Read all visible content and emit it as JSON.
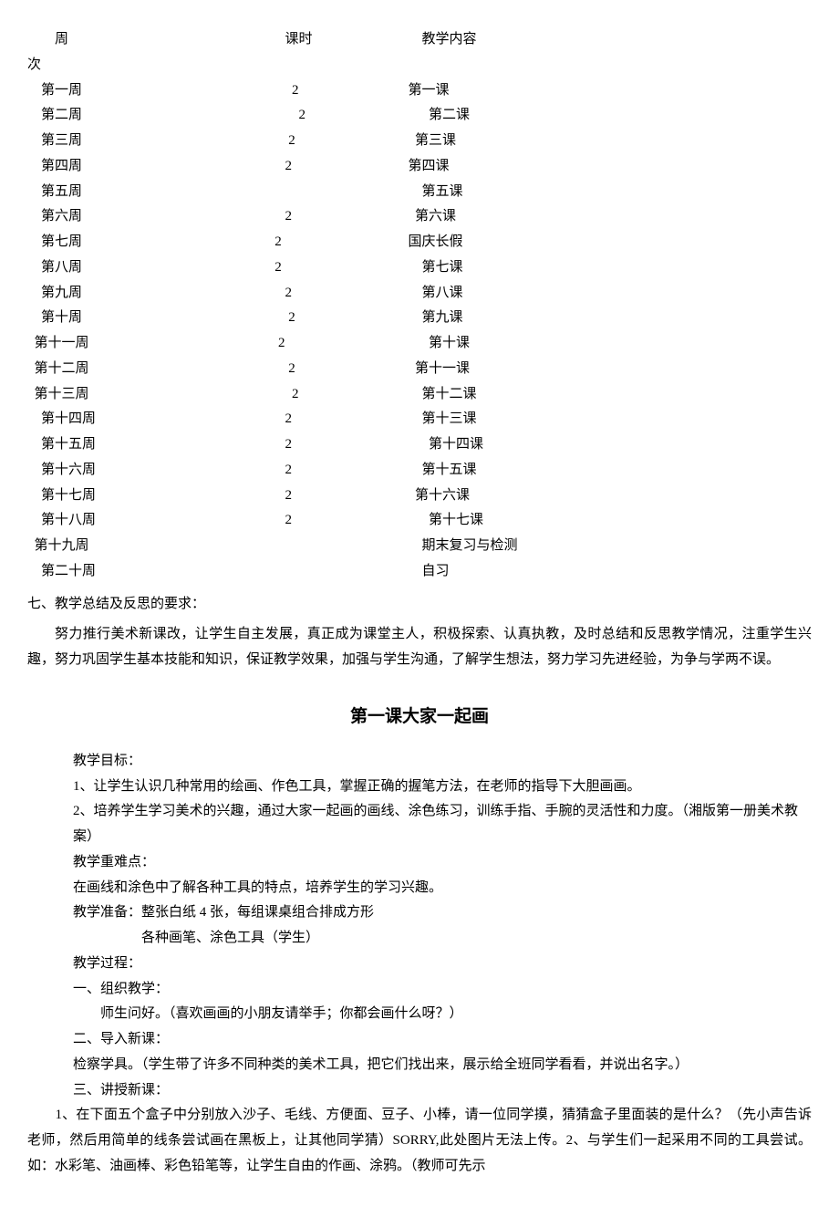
{
  "schedule": {
    "header": {
      "week": "        周",
      "hours": "              课时",
      "content": "              教学内容"
    },
    "header2": {
      "week": "次",
      "hours": "",
      "content": ""
    },
    "rows": [
      {
        "week": "    第一周",
        "hours": "                2",
        "content": "          第一课"
      },
      {
        "week": "    第二周",
        "hours": "                  2",
        "content": "                第二课"
      },
      {
        "week": "    第三周",
        "hours": "               2",
        "content": "            第三课"
      },
      {
        "week": "    第四周",
        "hours": "              2",
        "content": "          第四课"
      },
      {
        "week": "    第五周",
        "hours": "",
        "content": "              第五课"
      },
      {
        "week": "    第六周",
        "hours": "              2",
        "content": "            第六课"
      },
      {
        "week": "    第七周",
        "hours": "           2",
        "content": "          国庆长假"
      },
      {
        "week": "    第八周",
        "hours": "           2",
        "content": "              第七课"
      },
      {
        "week": "    第九周",
        "hours": "              2",
        "content": "              第八课"
      },
      {
        "week": "    第十周",
        "hours": "               2",
        "content": "              第九课"
      },
      {
        "week": "  第十一周",
        "hours": "            2",
        "content": "                第十课"
      },
      {
        "week": "  第十二周",
        "hours": "               2",
        "content": "            第十一课"
      },
      {
        "week": "  第十三周",
        "hours": "                2",
        "content": "              第十二课"
      },
      {
        "week": "    第十四周",
        "hours": "              2",
        "content": "              第十三课"
      },
      {
        "week": "    第十五周",
        "hours": "              2",
        "content": "                第十四课"
      },
      {
        "week": "    第十六周",
        "hours": "              2",
        "content": "              第十五课"
      },
      {
        "week": "    第十七周",
        "hours": "              2",
        "content": "            第十六课"
      },
      {
        "week": "    第十八周",
        "hours": "              2",
        "content": "                第十七课"
      },
      {
        "week": "  第十九周",
        "hours": "",
        "content": "              期末复习与检测"
      },
      {
        "week": "    第二十周",
        "hours": "",
        "content": "              自习"
      }
    ]
  },
  "section7": {
    "heading": "七、教学总结及反思的要求：",
    "body": "努力推行美术新课改，让学生自主发展，真正成为课堂主人，积极探索、认真执教，及时总结和反思教学情况，注重学生兴趣，努力巩固学生基本技能和知识，保证教学效果，加强与学生沟通，了解学生想法，努力学习先进经验，为争与学两不误。"
  },
  "lesson": {
    "title": "第一课大家一起画",
    "goals_heading": "教学目标：",
    "goal1": "1、让学生认识几种常用的绘画、作色工具，掌握正确的握笔方法，在老师的指导下大胆画画。",
    "goal2": "2、培养学生学习美术的兴趣，通过大家一起画的画线、涂色练习，训练手指、手腕的灵活性和力度。（湘版第一册美术教案）",
    "difficulty_heading": "教学重难点：",
    "difficulty_body": "在画线和涂色中了解各种工具的特点，培养学生的学习兴趣。",
    "prep_heading": "教学准备：整张白纸 4 张，每组课桌组合排成方形",
    "prep_body": "各种画笔、涂色工具（学生）",
    "process_heading": "教学过程：",
    "sec1_heading": "一、组织教学：",
    "sec1_body": "　　师生问好。（喜欢画画的小朋友请举手；你都会画什么呀？）",
    "sec2_heading": "二、导入新课：",
    "sec2_body": "检察学具。（学生带了许多不同种类的美术工具，把它们找出来，展示给全班同学看看，并说出名字。）",
    "sec3_heading": "三、讲授新课：",
    "sec3_body": "　　1、在下面五个盒子中分别放入沙子、毛线、方便面、豆子、小棒，请一位同学摸，猜猜盒子里面装的是什么？（先小声告诉老师，然后用简单的线条尝试画在黑板上，让其他同学猜）SORRY,此处图片无法上传。2、与学生们一起采用不同的工具尝试。如：水彩笔、油画棒、彩色铅笔等，让学生自由的作画、涂鸦。（教师可先示"
  }
}
